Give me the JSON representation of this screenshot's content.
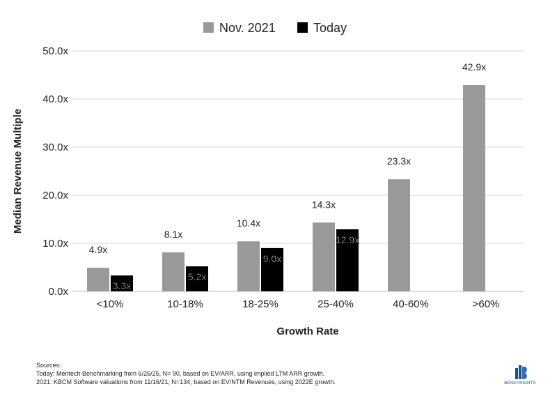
{
  "chart_data": {
    "type": "bar",
    "categories": [
      "<10%",
      "10-18%",
      "18-25%",
      "25-40%",
      "40-60%",
      ">60%"
    ],
    "series": [
      {
        "name": "Nov. 2021",
        "color": "#999999",
        "values": [
          4.9,
          8.1,
          10.4,
          14.3,
          23.3,
          42.9
        ],
        "labels": [
          "4.9x",
          "8.1x",
          "10.4x",
          "14.3x",
          "23.3x",
          "42.9x"
        ]
      },
      {
        "name": "Today",
        "color": "#000000",
        "values": [
          3.3,
          5.2,
          9.0,
          12.9,
          null,
          null
        ],
        "labels": [
          "3.3x",
          "5.2x",
          "9.0x",
          "12.9x",
          "",
          ""
        ]
      }
    ],
    "xlabel": "Growth Rate",
    "ylabel": "Median Revenue Multiple",
    "ylim": [
      0,
      50
    ],
    "yticks": [
      0,
      10,
      20,
      30,
      40,
      50
    ],
    "ytick_labels": [
      "0.0x",
      "10.0x",
      "20.0x",
      "30.0x",
      "40.0x",
      "50.0x"
    ],
    "grid": true,
    "legend": "top-center"
  },
  "sources": {
    "heading": "Sources:",
    "line1": "Today: Meritech Benchmarking from 6/26/25, N= 90, based on EV/ARR, using implied LTM ARR growth.",
    "line2": "2021: KBCM Software valuations from 11/16/21, N=134, based on EV/NTM Revenues, using 2022E growth."
  },
  "brand": {
    "name": "BENCHSIGHTS",
    "color": "#1f4e8c"
  }
}
